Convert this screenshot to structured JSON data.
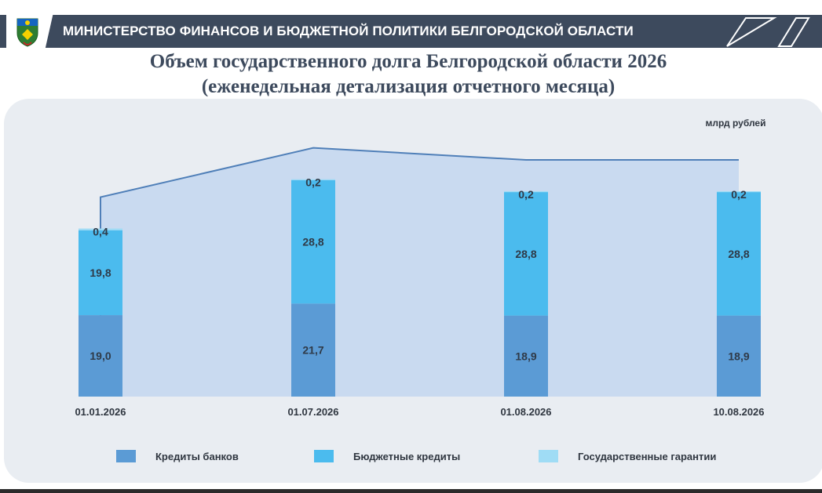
{
  "header": {
    "title": "МИНИСТЕРСТВО ФИНАНСОВ И БЮДЖЕТНОЙ ПОЛИТИКИ БЕЛГОРОДСКОЙ ОБЛАСТИ",
    "bar_color": "#3d4a5d"
  },
  "page_title": {
    "line1": "Объем государственного долга Белгородской области 2026",
    "line2": "(еженедельная детализация отчетного месяца)"
  },
  "chart_data": {
    "type": "bar",
    "stacked": true,
    "unit_label": "млрд рублей",
    "categories": [
      "01.01.2026",
      "01.07.2026",
      "01.08.2026",
      "10.08.2026"
    ],
    "series": [
      {
        "name": "Кредиты банков",
        "values": [
          19.0,
          21.7,
          18.9,
          18.9
        ],
        "labels": [
          "19,0",
          "21,7",
          "18,9",
          "18,9"
        ],
        "color": "#5b9bd5"
      },
      {
        "name": "Бюджетные кредиты",
        "values": [
          19.8,
          28.8,
          28.8,
          28.8
        ],
        "labels": [
          "19,8",
          "28,8",
          "28,8",
          "28,8"
        ],
        "color": "#4bbbee"
      },
      {
        "name": "Государственные гарантии",
        "values": [
          0.4,
          0.2,
          0.2,
          0.2
        ],
        "labels": [
          "0,4",
          "0,2",
          "0,2",
          "0,2"
        ],
        "color": "#9fdcf5"
      }
    ],
    "area_background": true,
    "legend_position": "bottom",
    "grid": false
  }
}
